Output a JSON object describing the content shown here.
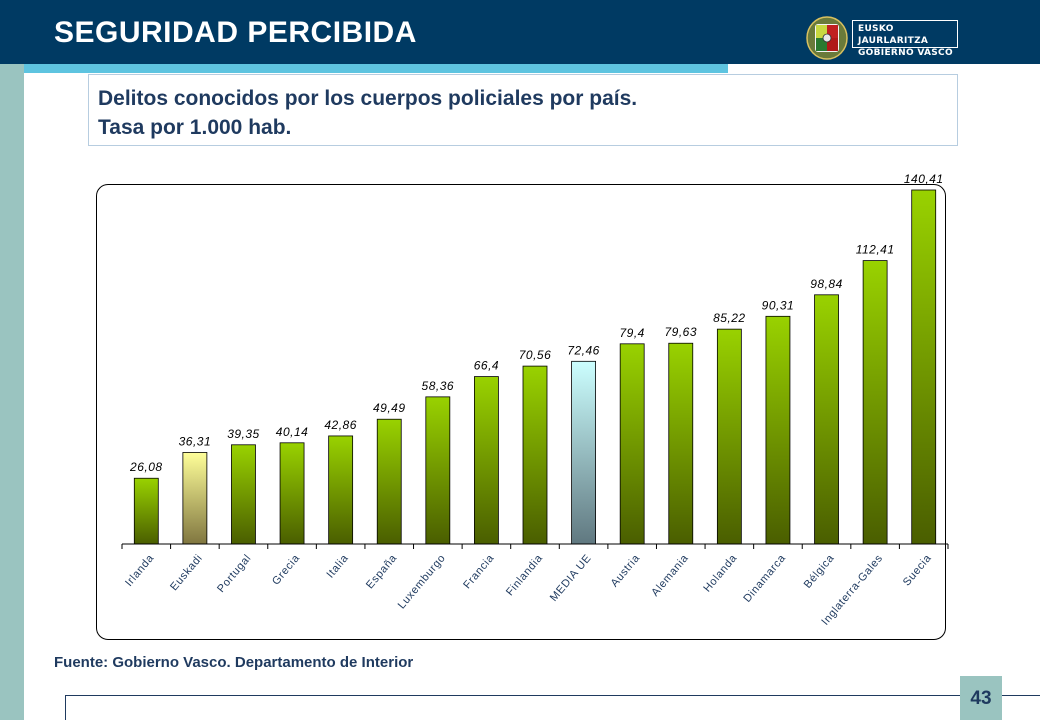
{
  "header": {
    "title": "SEGURIDAD  PERCIBIDA",
    "logo_line1": "EUSKO JAURLARITZA",
    "logo_line2": "GOBIERNO VASCO"
  },
  "subtitle": {
    "line1": "Delitos conocidos por los cuerpos policiales por país.",
    "line2": "Tasa por 1.000 hab."
  },
  "source": "Fuente: Gobierno Vasco. Departamento de Interior",
  "page_number": "43",
  "colors": {
    "header_bg": "#003A63",
    "accent_stripe": "#5EC4E0",
    "sidebar": "#9AC4C0",
    "bar_default_top": "#99D200",
    "bar_default_bottom": "#4A5E00",
    "bar_euskadi_top": "#FFFF99",
    "bar_euskadi_bottom": "#807640",
    "bar_media_top": "#CCFFFF",
    "bar_media_bottom": "#607880"
  },
  "chart_data": {
    "type": "bar",
    "title": "Delitos conocidos por los cuerpos policiales por país. Tasa por 1.000 hab.",
    "xlabel": "",
    "ylabel": "",
    "ylim": [
      0,
      150
    ],
    "grid": false,
    "categories": [
      "Irlanda",
      "Euskadi",
      "Portugal",
      "Grecia",
      "Italia",
      "España",
      "Luxemburgo",
      "Francia",
      "Finlandia",
      "MEDIA UE",
      "Austria",
      "Alemania",
      "Holanda",
      "Dinamarca",
      "Bélgica",
      "Inglaterra-Gales",
      "Suecia"
    ],
    "values": [
      26.08,
      36.31,
      39.35,
      40.14,
      42.86,
      49.49,
      58.36,
      66.4,
      70.56,
      72.46,
      79.4,
      79.63,
      85.22,
      90.31,
      98.84,
      112.41,
      140.41
    ],
    "value_labels": [
      "26,08",
      "36,31",
      "39,35",
      "40,14",
      "42,86",
      "49,49",
      "58,36",
      "66,4",
      "70,56",
      "72,46",
      "79,4",
      "79,63",
      "85,22",
      "90,31",
      "98,84",
      "112,41",
      "140,41"
    ],
    "highlight": {
      "Euskadi": "euskadi",
      "MEDIA UE": "media"
    }
  }
}
